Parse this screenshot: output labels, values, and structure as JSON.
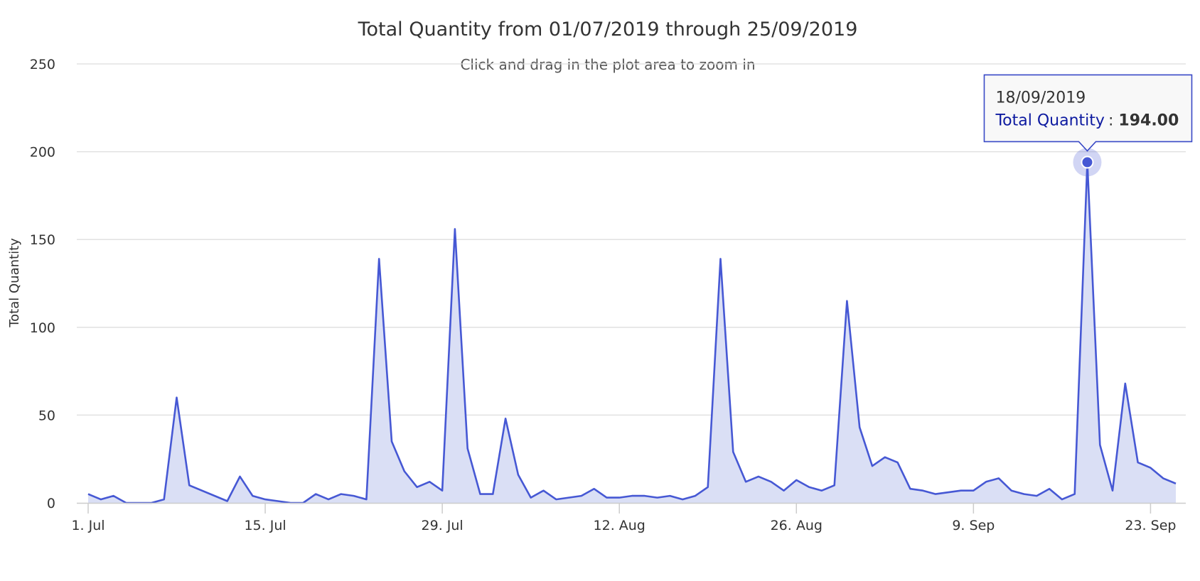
{
  "colors": {
    "series": "#4658d4",
    "area": "#dadff5",
    "grid": "#dedede",
    "tooltip_border": "#3949c6",
    "tooltip_series": "#0d1aa0"
  },
  "chart_data": {
    "type": "area",
    "title": "Total Quantity from 01/07/2019 through 25/09/2019",
    "subtitle": "Click and drag in the plot area to zoom in",
    "xlabel": "",
    "ylabel": "Total Quantity",
    "ylim": [
      0,
      250
    ],
    "yticks": [
      0,
      50,
      100,
      150,
      200,
      250
    ],
    "xlim": [
      "2019-07-01",
      "2019-09-25"
    ],
    "xticks": [
      {
        "date": "2019-07-01",
        "label": "1. Jul"
      },
      {
        "date": "2019-07-15",
        "label": "15. Jul"
      },
      {
        "date": "2019-07-29",
        "label": "29. Jul"
      },
      {
        "date": "2019-08-12",
        "label": "12. Aug"
      },
      {
        "date": "2019-08-26",
        "label": "26. Aug"
      },
      {
        "date": "2019-09-09",
        "label": "9. Sep"
      },
      {
        "date": "2019-09-23",
        "label": "23. Sep"
      }
    ],
    "grid": true,
    "legend": "none",
    "series": [
      {
        "name": "Total Quantity",
        "points": [
          [
            "2019-07-01",
            5
          ],
          [
            "2019-07-02",
            2
          ],
          [
            "2019-07-03",
            4
          ],
          [
            "2019-07-04",
            0
          ],
          [
            "2019-07-05",
            0
          ],
          [
            "2019-07-06",
            0
          ],
          [
            "2019-07-07",
            2
          ],
          [
            "2019-07-08",
            60
          ],
          [
            "2019-07-09",
            10
          ],
          [
            "2019-07-12",
            1
          ],
          [
            "2019-07-13",
            15
          ],
          [
            "2019-07-14",
            4
          ],
          [
            "2019-07-15",
            2
          ],
          [
            "2019-07-16",
            1
          ],
          [
            "2019-07-17",
            0
          ],
          [
            "2019-07-18",
            0
          ],
          [
            "2019-07-19",
            5
          ],
          [
            "2019-07-20",
            2
          ],
          [
            "2019-07-21",
            5
          ],
          [
            "2019-07-22",
            4
          ],
          [
            "2019-07-23",
            2
          ],
          [
            "2019-07-24",
            139
          ],
          [
            "2019-07-25",
            35
          ],
          [
            "2019-07-26",
            18
          ],
          [
            "2019-07-27",
            9
          ],
          [
            "2019-07-28",
            12
          ],
          [
            "2019-07-29",
            7
          ],
          [
            "2019-07-30",
            156
          ],
          [
            "2019-07-31",
            31
          ],
          [
            "2019-08-01",
            5
          ],
          [
            "2019-08-02",
            5
          ],
          [
            "2019-08-03",
            48
          ],
          [
            "2019-08-04",
            16
          ],
          [
            "2019-08-05",
            3
          ],
          [
            "2019-08-06",
            7
          ],
          [
            "2019-08-07",
            2
          ],
          [
            "2019-08-09",
            4
          ],
          [
            "2019-08-10",
            8
          ],
          [
            "2019-08-11",
            3
          ],
          [
            "2019-08-12",
            3
          ],
          [
            "2019-08-13",
            4
          ],
          [
            "2019-08-14",
            4
          ],
          [
            "2019-08-15",
            3
          ],
          [
            "2019-08-16",
            4
          ],
          [
            "2019-08-17",
            2
          ],
          [
            "2019-08-18",
            4
          ],
          [
            "2019-08-19",
            9
          ],
          [
            "2019-08-20",
            139
          ],
          [
            "2019-08-21",
            29
          ],
          [
            "2019-08-22",
            12
          ],
          [
            "2019-08-23",
            15
          ],
          [
            "2019-08-24",
            12
          ],
          [
            "2019-08-25",
            7
          ],
          [
            "2019-08-26",
            13
          ],
          [
            "2019-08-27",
            9
          ],
          [
            "2019-08-28",
            7
          ],
          [
            "2019-08-29",
            10
          ],
          [
            "2019-08-30",
            115
          ],
          [
            "2019-08-31",
            43
          ],
          [
            "2019-09-01",
            21
          ],
          [
            "2019-09-02",
            26
          ],
          [
            "2019-09-03",
            23
          ],
          [
            "2019-09-04",
            8
          ],
          [
            "2019-09-05",
            7
          ],
          [
            "2019-09-06",
            5
          ],
          [
            "2019-09-08",
            7
          ],
          [
            "2019-09-09",
            7
          ],
          [
            "2019-09-10",
            12
          ],
          [
            "2019-09-11",
            14
          ],
          [
            "2019-09-12",
            7
          ],
          [
            "2019-09-13",
            5
          ],
          [
            "2019-09-14",
            4
          ],
          [
            "2019-09-15",
            8
          ],
          [
            "2019-09-16",
            2
          ],
          [
            "2019-09-17",
            5
          ],
          [
            "2019-09-18",
            194
          ],
          [
            "2019-09-19",
            33
          ],
          [
            "2019-09-20",
            7
          ],
          [
            "2019-09-21",
            68
          ],
          [
            "2019-09-22",
            23
          ],
          [
            "2019-09-23",
            20
          ],
          [
            "2019-09-24",
            14
          ],
          [
            "2019-09-25",
            11
          ]
        ]
      }
    ],
    "tooltip": {
      "date": "2019-09-18",
      "date_label": "18/09/2019",
      "series_label": "Total Quantity",
      "separator": " : ",
      "value_label": "194.00"
    }
  }
}
